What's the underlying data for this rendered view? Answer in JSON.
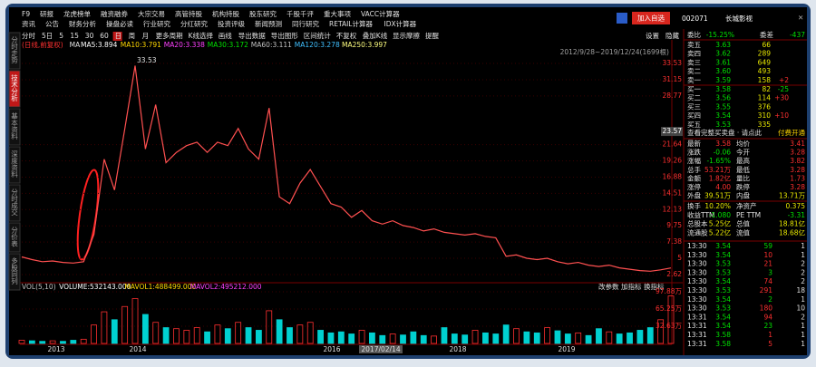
{
  "menu": {
    "row1": [
      "F9",
      "研报",
      "龙虎榜单",
      "融资融券",
      "大宗交易",
      "高管持股",
      "机构持股",
      "股东研究",
      "千股千评",
      "重大事项",
      "VACC计算器"
    ],
    "row2": [
      "资讯",
      "公告",
      "财务分析",
      "操盘必读",
      "行业研究",
      "分红研究",
      "投资评级",
      "新闻预测",
      "同行研究",
      "RETAIL计算器",
      "IDX计算器"
    ]
  },
  "header": {
    "add_button": "加入自选",
    "code": "002071",
    "name": "长城影视"
  },
  "side_tabs": [
    "分时走势",
    "技术分析",
    "基本资料",
    "深度资料",
    "分时成交",
    "分价表",
    "多股同列"
  ],
  "toolbar": [
    "分时",
    "5日",
    "5",
    "15",
    "30",
    "60",
    "日",
    "周",
    "月",
    "更多周期",
    "K线选择",
    "画线",
    "导出数据",
    "导出图形",
    "区间统计",
    "不复权",
    "叠加K线",
    "显示摩擦",
    "提醒"
  ],
  "toolbar_right": [
    "设置",
    "隐藏"
  ],
  "price_chart": {
    "legend_title": "(日线,前复权)",
    "ma_prefix": "MA",
    "ma_labels": [
      {
        "text": "MA5:3.894",
        "color": "#ffffff"
      },
      {
        "text": "MA10:3.791",
        "color": "#ffd700"
      },
      {
        "text": "MA20:3.338",
        "color": "#ff40ff"
      },
      {
        "text": "MA30:3.172",
        "color": "#00e000"
      },
      {
        "text": "MA60:3.111",
        "color": "#c0c0c0"
      },
      {
        "text": "MA120:3.278",
        "color": "#40c0ff"
      },
      {
        "text": "MA250:3.997",
        "color": "#ffff80"
      }
    ],
    "range_label": "2012/9/28~2019/12/24(1699根)",
    "peak_label": 33.53,
    "cursor_label": 23.57,
    "ylim": [
      2.35,
      35.92
    ],
    "yticks": [
      33.53,
      31.15,
      28.77,
      21.64,
      19.26,
      16.88,
      14.51,
      12.13,
      9.75,
      7.38,
      5.0,
      2.62
    ],
    "closes": [
      5.2,
      4.8,
      4.5,
      4.6,
      4.4,
      4.3,
      4.5,
      8.5,
      19.5,
      15,
      24,
      33.2,
      21,
      27.5,
      19,
      20.5,
      21.5,
      22,
      20.5,
      22,
      21.5,
      24,
      21,
      19.5,
      27,
      14,
      13,
      16,
      18,
      15.5,
      13,
      12.5,
      11,
      12,
      10.5,
      10,
      10.5,
      9.8,
      9.5,
      9,
      9.3,
      8.8,
      8.6,
      8.4,
      8.6,
      8.2,
      8,
      5.3,
      5.5,
      5,
      4.8,
      5,
      4.5,
      4.2,
      4.4,
      4,
      3.8,
      4,
      3.6,
      3.4,
      3.2,
      3.1,
      3.3,
      3.58
    ],
    "x_labels": [
      "2013",
      "2014",
      "2016",
      "2017/02/14",
      "2018",
      "2019"
    ]
  },
  "volume_chart": {
    "legend": [
      {
        "text": "VOL(5,10)",
        "color": "#c0c0c0"
      },
      {
        "text": "VOLUME:532143.000",
        "color": "#ffffff"
      },
      {
        "text": "MAVOL1:488499.000",
        "color": "#ffd700"
      },
      {
        "text": "MAVOL2:495212.000",
        "color": "#ff40ff"
      }
    ],
    "buttons": [
      "改参数",
      "加指标",
      "换指标"
    ],
    "ylim": [
      0,
      104.8
    ],
    "yticks": [
      {
        "value": 97.88,
        "label": "97.88万"
      },
      {
        "value": 65.25,
        "label": "65.25万"
      },
      {
        "value": 32.63,
        "label": "32.63万"
      }
    ],
    "values": [
      6,
      5,
      4,
      5,
      4,
      6,
      8,
      35,
      60,
      45,
      70,
      85,
      55,
      40,
      30,
      28,
      25,
      30,
      22,
      35,
      28,
      40,
      30,
      25,
      62,
      45,
      30,
      35,
      40,
      25,
      20,
      22,
      18,
      25,
      20,
      15,
      18,
      16,
      22,
      15,
      14,
      30,
      18,
      16,
      25,
      20,
      18,
      35,
      28,
      22,
      20,
      30,
      24,
      18,
      20,
      15,
      28,
      22,
      18,
      20,
      25,
      30,
      45,
      90
    ]
  },
  "quote": {
    "ratio_row": [
      "委比",
      "-15.25%",
      "委差",
      "-437"
    ],
    "asks": [
      [
        "卖五",
        "3.63",
        "66"
      ],
      [
        "卖四",
        "3.62",
        "289"
      ],
      [
        "卖三",
        "3.61",
        "649"
      ],
      [
        "卖二",
        "3.60",
        "493"
      ],
      [
        "卖一",
        "3.59",
        "158",
        "+2"
      ]
    ],
    "bids": [
      [
        "买一",
        "3.58",
        "82",
        "-25"
      ],
      [
        "买二",
        "3.56",
        "114",
        "+30"
      ],
      [
        "买三",
        "3.55",
        "376"
      ],
      [
        "买四",
        "3.54",
        "310",
        "+10"
      ],
      [
        "买五",
        "3.53",
        "335"
      ]
    ],
    "link": [
      "查看完整买卖盘 · 请点此",
      "付费开通"
    ],
    "stats": [
      [
        "最新",
        "3.58",
        "均价",
        "3.41"
      ],
      [
        "涨跌",
        "-0.06",
        "今开",
        "3.28"
      ],
      [
        "涨幅",
        "-1.65%",
        "最高",
        "3.82"
      ],
      [
        "总手",
        "53.21万",
        "最低",
        "3.28"
      ],
      [
        "金额",
        "1.82亿",
        "量比",
        "1.73"
      ],
      [
        "涨停",
        "4.00",
        "跌停",
        "3.28"
      ],
      [
        "外盘",
        "39.51万",
        "内盘",
        "13.71万"
      ]
    ],
    "finance": [
      [
        "换手",
        "10.20%",
        "净资产",
        "0.375"
      ],
      [
        "收益TTM",
        "-1.080",
        "PE TTM",
        "-3.31"
      ],
      [
        "总股本",
        "5.25亿",
        "总值",
        "18.81亿"
      ],
      [
        "流通股",
        "5.22亿",
        "流值",
        "18.68亿"
      ]
    ],
    "trades": [
      [
        "13:30",
        "3.54",
        "59",
        "1"
      ],
      [
        "13:30",
        "3.54",
        "10",
        "1"
      ],
      [
        "13:30",
        "3.53",
        "21",
        "2"
      ],
      [
        "13:30",
        "3.53",
        "3",
        "2"
      ],
      [
        "13:30",
        "3.54",
        "74",
        "2"
      ],
      [
        "13:30",
        "3.53",
        "291",
        "18"
      ],
      [
        "13:30",
        "3.54",
        "2",
        "1"
      ],
      [
        "13:30",
        "3.53",
        "180",
        "10"
      ],
      [
        "13:31",
        "3.54",
        "94",
        "2"
      ],
      [
        "13:31",
        "3.54",
        "23",
        "1"
      ],
      [
        "13:31",
        "3.58",
        "1",
        "1"
      ],
      [
        "13:31",
        "3.58",
        "5",
        "1"
      ]
    ]
  }
}
